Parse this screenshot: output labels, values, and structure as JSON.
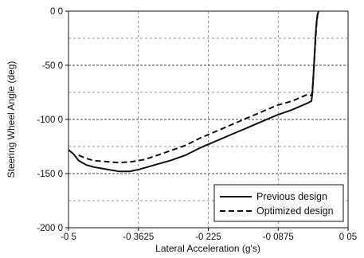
{
  "chart_data": {
    "type": "line",
    "xlabel": "Lateral Acceleration (g's)",
    "ylabel": "Steering Wheel Angle (deg)",
    "xlim": [
      -0.5,
      0.05
    ],
    "ylim": [
      -200,
      0
    ],
    "x_ticks": [
      -0.5,
      -0.3625,
      -0.225,
      -0.0875,
      0.05
    ],
    "x_tick_labels": [
      "-0 5",
      "-0 3625",
      "-0 225",
      "-0 0875",
      "0 05"
    ],
    "y_ticks": [
      0,
      -50,
      -100,
      -150,
      -200
    ],
    "y_tick_labels": [
      "0 0",
      "-50 0",
      "-100 0",
      "-150 0",
      "-200 0"
    ],
    "grid": {
      "horizontal": true,
      "vertical": true,
      "style": "dashed"
    },
    "legend_position": "bottom-right",
    "series": [
      {
        "name": "Previous design",
        "line_style": "solid",
        "points": [
          [
            -0.5,
            -128
          ],
          [
            -0.49,
            -132
          ],
          [
            -0.48,
            -138
          ],
          [
            -0.465,
            -142
          ],
          [
            -0.45,
            -144
          ],
          [
            -0.425,
            -146
          ],
          [
            -0.4,
            -148
          ],
          [
            -0.38,
            -148
          ],
          [
            -0.36,
            -146
          ],
          [
            -0.33,
            -142
          ],
          [
            -0.3,
            -138
          ],
          [
            -0.27,
            -133
          ],
          [
            -0.24,
            -126
          ],
          [
            -0.21,
            -120
          ],
          [
            -0.18,
            -114
          ],
          [
            -0.15,
            -108
          ],
          [
            -0.12,
            -102
          ],
          [
            -0.09,
            -96
          ],
          [
            -0.06,
            -91
          ],
          [
            -0.04,
            -87
          ],
          [
            -0.03,
            -85
          ],
          [
            -0.022,
            -83
          ],
          [
            -0.02,
            -75
          ],
          [
            -0.018,
            -58
          ],
          [
            -0.016,
            -40
          ],
          [
            -0.014,
            -22
          ],
          [
            -0.012,
            -10
          ],
          [
            -0.01,
            -3
          ],
          [
            -0.008,
            0
          ]
        ]
      },
      {
        "name": "Optimized design",
        "line_style": "dashed",
        "points": [
          [
            -0.48,
            -133
          ],
          [
            -0.465,
            -136
          ],
          [
            -0.45,
            -138
          ],
          [
            -0.425,
            -139
          ],
          [
            -0.4,
            -140
          ],
          [
            -0.375,
            -139
          ],
          [
            -0.35,
            -137
          ],
          [
            -0.325,
            -133
          ],
          [
            -0.3,
            -129
          ],
          [
            -0.27,
            -124
          ],
          [
            -0.24,
            -117
          ],
          [
            -0.21,
            -111
          ],
          [
            -0.18,
            -105
          ],
          [
            -0.15,
            -99
          ],
          [
            -0.12,
            -93
          ],
          [
            -0.09,
            -87
          ],
          [
            -0.06,
            -83
          ],
          [
            -0.04,
            -79
          ],
          [
            -0.03,
            -77
          ],
          [
            -0.022,
            -78
          ],
          [
            -0.02,
            -72
          ],
          [
            -0.018,
            -58
          ],
          [
            -0.016,
            -42
          ],
          [
            -0.014,
            -26
          ],
          [
            -0.012,
            -12
          ],
          [
            -0.01,
            -3
          ],
          [
            -0.008,
            0
          ]
        ]
      }
    ]
  }
}
